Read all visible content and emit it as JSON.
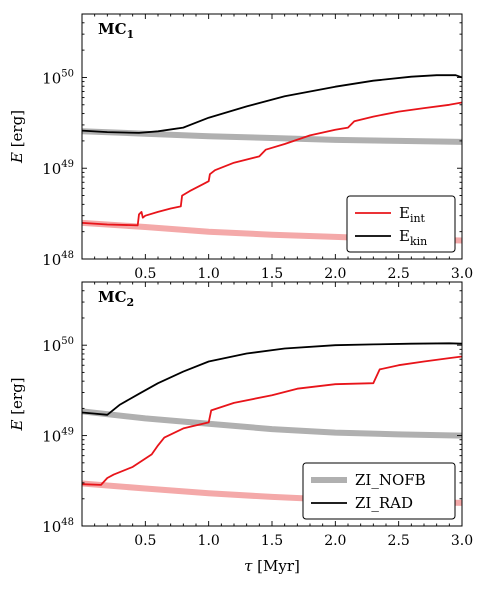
{
  "figure": {
    "xlabel_symbol": "τ",
    "xlabel_unit": "[Myr]",
    "ylabel_symbol": "E",
    "ylabel_unit": "[erg]",
    "xticks": [
      "0.5",
      "1.0",
      "1.5",
      "2.0",
      "2.5",
      "3.0"
    ],
    "ytick_base": "10",
    "colors": {
      "eint": "#e8141a",
      "ekin": "#000000",
      "nofb": "#b0b0b0",
      "eint_nofb": "#f4a9a9"
    }
  },
  "chart_data": [
    {
      "type": "line",
      "panel": "MC1",
      "title_main": "MC",
      "title_sub": "1",
      "xlabel": "τ [Myr]",
      "ylabel": "E [erg]",
      "xlim": [
        0,
        3.0
      ],
      "ylim": [
        1e+48,
        5e+50
      ],
      "yscale": "log",
      "yticks": [
        {
          "base": "10",
          "exp": "48"
        },
        {
          "base": "10",
          "exp": "49"
        },
        {
          "base": "10",
          "exp": "50"
        }
      ],
      "legend": {
        "placement": "bottom-right",
        "entries": [
          {
            "symbol": "E",
            "sub": "int",
            "series": "eint_rad"
          },
          {
            "symbol": "E",
            "sub": "kin",
            "series": "ekin_rad"
          }
        ]
      },
      "series": [
        {
          "key": "ekin_nofb",
          "style": "thick-gray",
          "x": [
            0,
            0.5,
            1.0,
            1.5,
            2.0,
            2.5,
            3.0
          ],
          "y": [
            2.55e+49,
            2.4e+49,
            2.25e+49,
            2.15e+49,
            2.05e+49,
            2e+49,
            1.95e+49
          ]
        },
        {
          "key": "eint_nofb",
          "style": "thick-pink",
          "x": [
            0,
            0.5,
            1.0,
            1.5,
            2.0,
            2.5,
            3.0
          ],
          "y": [
            2.5e+48,
            2.25e+48,
            2e+48,
            1.85e+48,
            1.75e+48,
            1.65e+48,
            1.6e+48
          ]
        },
        {
          "key": "ekin_rad",
          "style": "black",
          "x": [
            0,
            0.2,
            0.45,
            0.6,
            0.8,
            1.0,
            1.3,
            1.6,
            2.0,
            2.3,
            2.6,
            2.8,
            2.95,
            3.0
          ],
          "y": [
            2.6e+49,
            2.5e+49,
            2.45e+49,
            2.55e+49,
            2.8e+49,
            3.6e+49,
            4.8e+49,
            6.2e+49,
            7.9e+49,
            9.2e+49,
            1.02e+50,
            1.06e+50,
            1.06e+50,
            1e+50
          ]
        },
        {
          "key": "eint_rad",
          "style": "red",
          "x": [
            0,
            0.2,
            0.44,
            0.45,
            0.47,
            0.48,
            0.5,
            0.6,
            0.7,
            0.78,
            0.79,
            0.85,
            0.95,
            1.0,
            1.01,
            1.05,
            1.2,
            1.4,
            1.45,
            1.6,
            1.8,
            2.0,
            2.1,
            2.15,
            2.3,
            2.5,
            2.7,
            2.9,
            3.0
          ],
          "y": [
            2.5e+48,
            2.4e+48,
            2.35e+48,
            3.1e+48,
            3.3e+48,
            2.85e+48,
            3e+48,
            3.3e+48,
            3.6e+48,
            3.8e+48,
            5e+48,
            5.6e+48,
            6.6e+48,
            7.2e+48,
            8.6e+48,
            9.5e+48,
            1.15e+49,
            1.35e+49,
            1.6e+49,
            1.85e+49,
            2.3e+49,
            2.65e+49,
            2.8e+49,
            3.3e+49,
            3.7e+49,
            4.2e+49,
            4.6e+49,
            5e+49,
            5.3e+49
          ]
        }
      ]
    },
    {
      "type": "line",
      "panel": "MC2",
      "title_main": "MC",
      "title_sub": "2",
      "xlabel": "τ [Myr]",
      "ylabel": "E [erg]",
      "xlim": [
        0,
        3.0
      ],
      "ylim": [
        1e+48,
        5e+50
      ],
      "yscale": "log",
      "yticks": [
        {
          "base": "10",
          "exp": "48"
        },
        {
          "base": "10",
          "exp": "49"
        },
        {
          "base": "10",
          "exp": "50"
        }
      ],
      "legend": {
        "placement": "bottom-right",
        "entries": [
          {
            "label": "ZI_NOFB",
            "series": "ekin_nofb"
          },
          {
            "label": "ZI_RAD",
            "series": "ekin_rad"
          }
        ]
      },
      "series": [
        {
          "key": "ekin_nofb",
          "style": "thick-gray",
          "x": [
            0,
            0.5,
            1.0,
            1.5,
            2.0,
            2.5,
            3.0
          ],
          "y": [
            1.85e+49,
            1.55e+49,
            1.35e+49,
            1.18e+49,
            1.08e+49,
            1.03e+49,
            1e+49
          ]
        },
        {
          "key": "eint_nofb",
          "style": "thick-pink",
          "x": [
            0,
            0.5,
            1.0,
            1.5,
            2.0,
            2.5,
            3.0
          ],
          "y": [
            2.95e+48,
            2.6e+48,
            2.3e+48,
            2.1e+48,
            1.95e+48,
            1.85e+48,
            1.8e+48
          ]
        },
        {
          "key": "ekin_rad",
          "style": "black",
          "x": [
            0,
            0.1,
            0.2,
            0.3,
            0.45,
            0.6,
            0.8,
            1.0,
            1.3,
            1.6,
            2.0,
            2.3,
            2.6,
            2.9,
            3.0
          ],
          "y": [
            1.8e+49,
            1.75e+49,
            1.7e+49,
            2.2e+49,
            2.9e+49,
            3.8e+49,
            5.1e+49,
            6.6e+49,
            8.1e+49,
            9.2e+49,
            1e+50,
            1.02e+50,
            1.04e+50,
            1.05e+50,
            1.04e+50
          ]
        },
        {
          "key": "eint_rad",
          "style": "red",
          "x": [
            0,
            0.15,
            0.2,
            0.25,
            0.4,
            0.55,
            0.6,
            0.65,
            0.8,
            1.0,
            1.02,
            1.2,
            1.5,
            1.7,
            2.0,
            2.3,
            2.35,
            2.5,
            2.7,
            2.9,
            3.0
          ],
          "y": [
            2.9e+48,
            2.85e+48,
            3.4e+48,
            3.7e+48,
            4.5e+48,
            6.2e+48,
            7.8e+48,
            9.5e+48,
            1.2e+49,
            1.4e+49,
            1.9e+49,
            2.3e+49,
            2.8e+49,
            3.3e+49,
            3.7e+49,
            3.8e+49,
            5.4e+49,
            6e+49,
            6.6e+49,
            7.2e+49,
            7.5e+49
          ]
        }
      ]
    }
  ]
}
